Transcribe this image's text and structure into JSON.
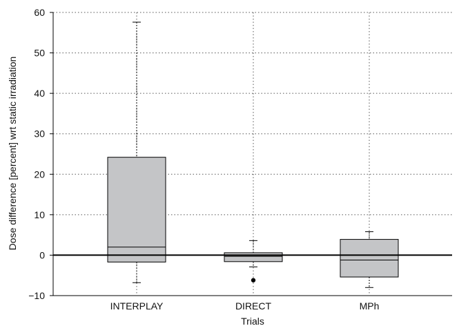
{
  "chart_data": {
    "type": "box",
    "xlabel": "Trials",
    "ylabel": "Dose difference [percent] wrt static irradiation",
    "ylim": [
      -10,
      60
    ],
    "yticks": [
      -10,
      0,
      10,
      20,
      30,
      40,
      50,
      60
    ],
    "ytick_labels": [
      "−10",
      "0",
      "10",
      "20",
      "30",
      "40",
      "50",
      "60"
    ],
    "grid": true,
    "reference_line_y": 0,
    "categories": [
      "INTERPLAY",
      "DIRECT",
      "MPh"
    ],
    "boxes": [
      {
        "category": "INTERPLAY",
        "whisker_low": -6.8,
        "q1": -1.7,
        "median": 2.0,
        "q3": 24.2,
        "whisker_high": 57.6,
        "outliers": []
      },
      {
        "category": "DIRECT",
        "whisker_low": -2.9,
        "q1": -1.6,
        "median": -0.3,
        "q3": 0.6,
        "whisker_high": 3.6,
        "outliers": [
          -6.2
        ]
      },
      {
        "category": "MPh",
        "whisker_low": -8.0,
        "q1": -5.4,
        "median": -1.2,
        "q3": 3.9,
        "whisker_high": 5.8,
        "outliers": []
      }
    ],
    "colors": {
      "box_fill": "#c4c5c7",
      "line": "#000000",
      "grid": "#555555"
    }
  }
}
